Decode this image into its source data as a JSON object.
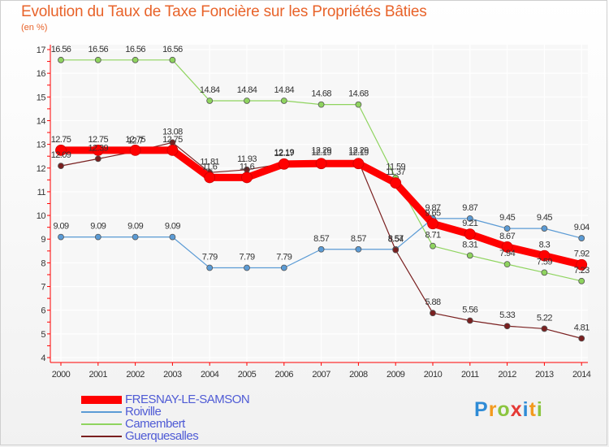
{
  "chart_data": {
    "type": "line",
    "title": "Evolution du Taux de Taxe Foncière sur les Propriétés Bâties",
    "subtitle": "(en %)",
    "categories": [
      "2000",
      "2001",
      "2002",
      "2003",
      "2004",
      "2005",
      "2006",
      "2007",
      "2008",
      "2009",
      "2010",
      "2011",
      "2012",
      "2013",
      "2014"
    ],
    "ylim": [
      4,
      17
    ],
    "yticks": [
      4,
      5,
      6,
      7,
      8,
      9,
      10,
      11,
      12,
      13,
      14,
      15,
      16,
      17
    ],
    "series": [
      {
        "name": "Roiville",
        "color": "#5b9bd5",
        "width": 1.2,
        "values": [
          9.09,
          9.09,
          9.09,
          9.09,
          7.79,
          7.79,
          7.79,
          8.57,
          8.57,
          8.57,
          9.87,
          9.87,
          9.45,
          9.45,
          9.04
        ],
        "labels": [
          "9.09",
          "9.09",
          "9.09",
          "9.09",
          "7.79",
          "7.79",
          "7.79",
          "8.57",
          "8.57",
          "8.57",
          "9.87",
          "9.87",
          "9.45",
          "9.45",
          "9.04"
        ]
      },
      {
        "name": "Camembert",
        "color": "#8fd45f",
        "width": 1.2,
        "values": [
          16.56,
          16.56,
          16.56,
          16.56,
          14.84,
          14.84,
          14.84,
          14.68,
          14.68,
          11.59,
          8.71,
          8.31,
          7.94,
          7.59,
          7.23
        ],
        "labels": [
          "16.56",
          "16.56",
          "16.56",
          "16.56",
          "14.84",
          "14.84",
          "14.84",
          "14.68",
          "14.68",
          "11.59",
          "8.71",
          "8.31",
          "7.94",
          "7.59",
          "7.23"
        ]
      },
      {
        "name": "Guerquesalles",
        "color": "#7a2020",
        "width": 1.2,
        "values": [
          12.09,
          12.39,
          12.7,
          13.08,
          11.81,
          11.93,
          12.19,
          12.29,
          12.29,
          8.54,
          5.88,
          5.56,
          5.33,
          5.22,
          4.81
        ],
        "labels": [
          "12.09",
          "12.39",
          "12.7",
          "13.08",
          "11.81",
          "11.93",
          "12.19",
          "12.29",
          "12.29",
          "8.54",
          "5.88",
          "5.56",
          "5.33",
          "5.22",
          "4.81"
        ]
      },
      {
        "name": "FRESNAY-LE-SAMSON",
        "color": "#ff0000",
        "width": 9,
        "values": [
          12.75,
          12.75,
          12.75,
          12.75,
          11.6,
          11.6,
          12.17,
          12.19,
          12.19,
          11.37,
          9.65,
          9.21,
          8.67,
          8.3,
          7.92
        ],
        "labels": [
          "12.75",
          "12.75",
          "12.75",
          "12.75",
          "11.6",
          "11.6",
          "12.17",
          "12.19",
          "12.19",
          "11.37",
          "9.65",
          "9.21",
          "8.67",
          "8.3",
          "7.92"
        ]
      }
    ],
    "legend": [
      "FRESNAY-LE-SAMSON",
      "Roiville",
      "Camembert",
      "Guerquesalles"
    ]
  },
  "logo": {
    "letters": [
      "P",
      "r",
      "o",
      "x",
      "i",
      "t",
      "i"
    ],
    "colors": [
      "#2e8bd6",
      "#f39a1e",
      "#8bc53f",
      "#e53935",
      "#2e8bd6",
      "#f39a1e",
      "#8bc53f"
    ]
  }
}
